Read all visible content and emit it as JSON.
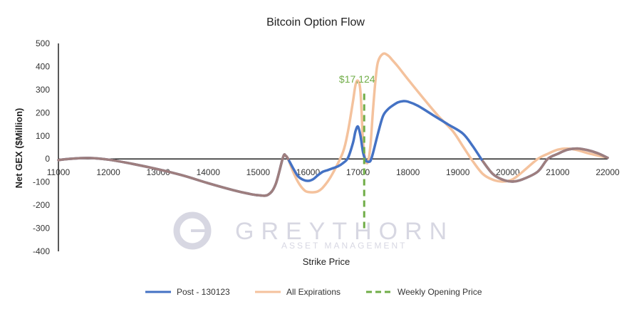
{
  "chart_data": {
    "type": "line",
    "title": "Bitcoin Option Flow",
    "xlabel": "Strike Price",
    "ylabel": "Net GEX ($Million)",
    "xlim": [
      11000,
      22000
    ],
    "ylim": [
      -400,
      500
    ],
    "xticks": [
      11000,
      12000,
      13000,
      14000,
      15000,
      16000,
      17000,
      18000,
      19000,
      20000,
      21000,
      22000
    ],
    "yticks": [
      -400,
      -300,
      -200,
      -100,
      0,
      100,
      200,
      300,
      400,
      500
    ],
    "grid": false,
    "legend_position": "bottom",
    "series": [
      {
        "name": "All Expirations",
        "color": "#F4C29D",
        "x": [
          11000,
          11200,
          11600,
          12000,
          12500,
          13000,
          13500,
          14000,
          14500,
          14800,
          15000,
          15200,
          15350,
          15500,
          15550,
          15600,
          15700,
          15800,
          15900,
          16000,
          16200,
          16350,
          16500,
          16700,
          16800,
          16900,
          16950,
          17000,
          17050,
          17100,
          17150,
          17200,
          17250,
          17300,
          17350,
          17400,
          17500,
          17600,
          17700,
          17800,
          18000,
          18300,
          18600,
          18900,
          19100,
          19300,
          19500,
          19700,
          19900,
          20100,
          20300,
          20600,
          20800,
          21000,
          21200,
          21400,
          21600,
          21800,
          22000
        ],
        "values": [
          -5,
          0,
          4,
          -3,
          -22,
          -45,
          -72,
          -105,
          -135,
          -150,
          -157,
          -155,
          -110,
          8,
          14,
          0,
          -55,
          -100,
          -130,
          -143,
          -140,
          -110,
          -60,
          30,
          120,
          250,
          320,
          338,
          290,
          80,
          -5,
          -12,
          60,
          210,
          340,
          420,
          455,
          448,
          425,
          400,
          345,
          265,
          188,
          120,
          55,
          -10,
          -65,
          -90,
          -98,
          -88,
          -55,
          0,
          22,
          40,
          45,
          38,
          25,
          15,
          5
        ]
      },
      {
        "name": "Post - 130123",
        "color": "#4472C4",
        "x": [
          11000,
          11200,
          11600,
          12000,
          12500,
          13000,
          13500,
          14000,
          14500,
          14800,
          15000,
          15200,
          15350,
          15500,
          15550,
          15600,
          15700,
          15800,
          15900,
          16000,
          16100,
          16200,
          16300,
          16400,
          16500,
          16600,
          16700,
          16800,
          16900,
          16950,
          17000,
          17050,
          17100,
          17150,
          17200,
          17250,
          17300,
          17400,
          17500,
          17600,
          17700,
          17800,
          17900,
          18000,
          18200,
          18500,
          18800,
          19100,
          19300,
          19500,
          19700,
          19900,
          20100,
          20300,
          20600,
          20800,
          21000,
          21200,
          21400,
          21600,
          21800,
          22000
        ],
        "values": [
          -5,
          0,
          4,
          -3,
          -22,
          -45,
          -72,
          -105,
          -135,
          -150,
          -157,
          -155,
          -110,
          8,
          14,
          0,
          -40,
          -75,
          -90,
          -95,
          -88,
          -70,
          -55,
          -48,
          -40,
          -32,
          -18,
          5,
          70,
          120,
          140,
          100,
          30,
          -5,
          -12,
          -8,
          25,
          110,
          185,
          215,
          232,
          245,
          250,
          248,
          230,
          190,
          150,
          110,
          55,
          -10,
          -65,
          -90,
          -98,
          -88,
          -55,
          0,
          22,
          40,
          45,
          38,
          25,
          5
        ]
      },
      {
        "name": "Post - 130123",
        "color": "#9E7E7E",
        "x": [
          11000,
          11200,
          11600,
          12000,
          12500,
          13000,
          13500,
          14000,
          14500,
          14800,
          15000,
          15200,
          15350,
          15500,
          15550,
          15600
        ],
        "values": [
          -5,
          0,
          4,
          -3,
          -22,
          -45,
          -72,
          -105,
          -135,
          -150,
          -157,
          -155,
          -110,
          8,
          14,
          0
        ]
      },
      {
        "name": "Post - 130123",
        "color": "#9E7E7E",
        "x": [
          19500,
          19700,
          19900,
          20100,
          20300,
          20600,
          20800,
          21000,
          21200,
          21400,
          21600,
          21800,
          22000
        ],
        "values": [
          -10,
          -65,
          -90,
          -98,
          -88,
          -55,
          0,
          22,
          40,
          45,
          38,
          25,
          5
        ]
      }
    ],
    "vline": {
      "name": "Weekly Opening Price",
      "x": 17124,
      "color": "#70AD47",
      "annotation": "$17,124",
      "y_range": [
        -300,
        300
      ]
    },
    "legend": [
      {
        "label": "Post - 130123",
        "color": "#4472C4",
        "style": "solid"
      },
      {
        "label": "All Expirations",
        "color": "#F4C29D",
        "style": "solid"
      },
      {
        "label": "Weekly Opening Price",
        "color": "#70AD47",
        "style": "dashed"
      }
    ]
  },
  "watermark": {
    "brand": "GREYTHORN",
    "tagline": "ASSET MANAGEMENT"
  }
}
